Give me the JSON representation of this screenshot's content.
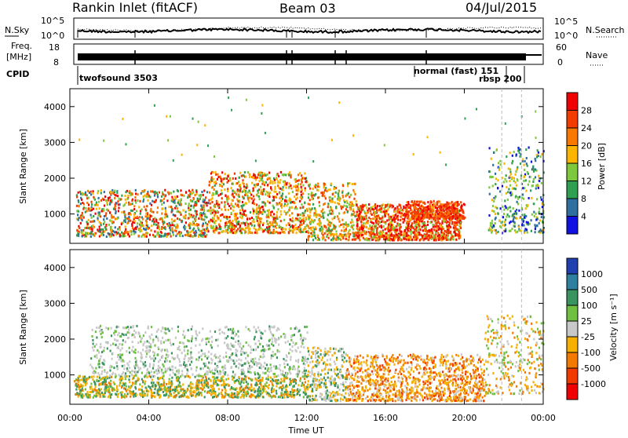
{
  "header": {
    "station": "Rankin Inlet (fitACF)",
    "beam": "Beam 03",
    "date": "04/Jul/2015"
  },
  "top_panels": {
    "nsky_label": "N.Sky",
    "freq_label_line1": "Freq.",
    "freq_label_line2": "[MHz]",
    "cpid_label": "CPID",
    "nsearch_label": "N.Search",
    "nave_label": "Nave",
    "noise_left_ticks": [
      "10^5",
      "10^0"
    ],
    "noise_right_ticks": [
      "10^5",
      "10^0"
    ],
    "freq_left_ticks": [
      "18",
      "8"
    ],
    "freq_right_ticks": [
      "60",
      "0"
    ],
    "cpid_segments": [
      "twofsound 3503",
      "normal (fast) 151",
      "rbsp 200"
    ]
  },
  "power_panel": {
    "ylabel": "Slant Range [km]",
    "yticks": [
      "4000",
      "3000",
      "2000",
      "1000"
    ],
    "colorbar_label": "Power [dB]",
    "colorbar_ticks": [
      "28",
      "24",
      "20",
      "16",
      "12",
      "8",
      "4"
    ],
    "colorbar_colors": [
      "#f00000",
      "#f43c00",
      "#f87800",
      "#fbb400",
      "#7dc83c",
      "#2ea050",
      "#2c6fa0",
      "#1010e0"
    ]
  },
  "velocity_panel": {
    "ylabel": "Slant Range [km]",
    "yticks": [
      "4000",
      "3000",
      "2000",
      "1000"
    ],
    "colorbar_label": "Velocity [m s⁻¹]",
    "colorbar_ticks": [
      "1000",
      "500",
      "100",
      "25",
      "-25",
      "-100",
      "-500",
      "-1000"
    ],
    "colorbar_colors": [
      "#2040b0",
      "#2e7fa0",
      "#3a9460",
      "#6fc040",
      "#c8c8c8",
      "#f6b000",
      "#f27a00",
      "#f23a00",
      "#f00000"
    ]
  },
  "xaxis": {
    "ticks": [
      "00:00",
      "04:00",
      "08:00",
      "12:00",
      "16:00",
      "20:00",
      "00:00"
    ],
    "label": "Time UT"
  },
  "chart_data": [
    {
      "type": "heatmap",
      "title": "Power",
      "xlabel": "Time UT",
      "ylabel": "Slant Range [km]",
      "xlim_hours": [
        0,
        24
      ],
      "ylim_km": [
        180,
        4500
      ],
      "colorbar_range_db": [
        0,
        32
      ],
      "approximate_echo_regions": [
        {
          "t_start": 0.0,
          "t_end": 7.0,
          "r_min": 400,
          "r_max": 1700,
          "level": "mixed 10-28 dB"
        },
        {
          "t_start": 7.0,
          "t_end": 12.0,
          "r_min": 500,
          "r_max": 2200,
          "level": "mixed 12-28 dB"
        },
        {
          "t_start": 14.5,
          "t_end": 19.8,
          "r_min": 300,
          "r_max": 1300,
          "level": "strong 20-30 dB"
        },
        {
          "t_start": 21.2,
          "t_end": 24.0,
          "r_min": 500,
          "r_max": 2900,
          "level": "mixed 4-20 dB"
        }
      ]
    },
    {
      "type": "heatmap",
      "title": "Velocity",
      "xlabel": "Time UT",
      "ylabel": "Slant Range [km]",
      "xlim_hours": [
        0,
        24
      ],
      "ylim_km": [
        180,
        4500
      ],
      "colorbar_range_ms": [
        -1000,
        1000
      ],
      "approximate_echo_regions": [
        {
          "t_start": 0.0,
          "t_end": 12.0,
          "r_min": 400,
          "r_max": 1000,
          "level": "-100 to 100 m/s"
        },
        {
          "t_start": 1.0,
          "t_end": 12.0,
          "r_min": 1000,
          "r_max": 2400,
          "level": "-25 to 25 m/s"
        },
        {
          "t_start": 14.0,
          "t_end": 21.0,
          "r_min": 300,
          "r_max": 1600,
          "level": "-500 to -100 m/s"
        }
      ]
    }
  ]
}
